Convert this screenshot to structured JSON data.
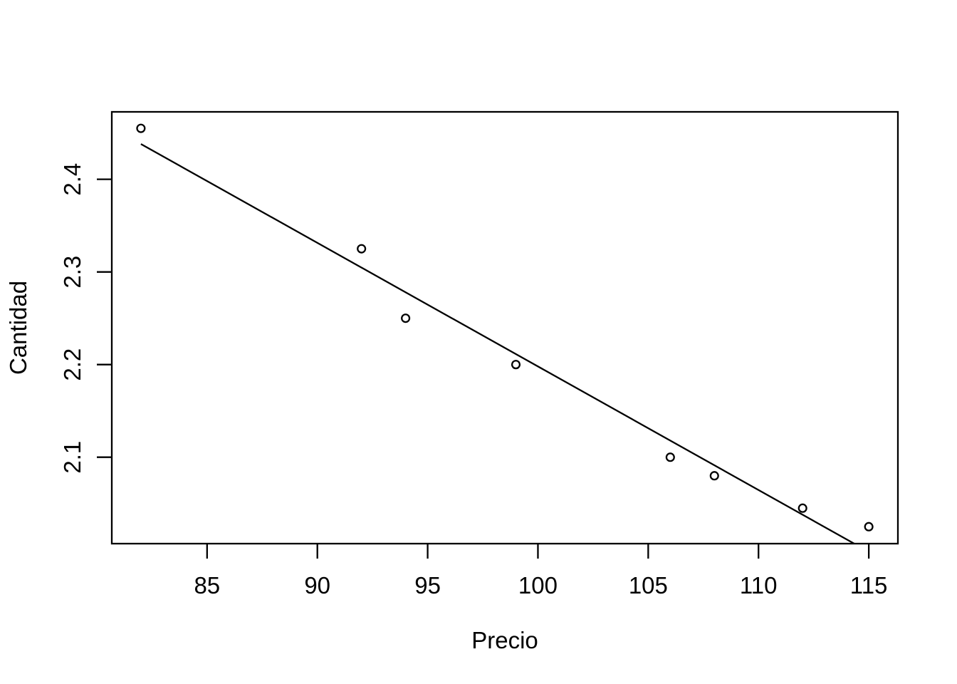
{
  "chart_data": {
    "type": "scatter",
    "title": "",
    "xlabel": "Precio",
    "ylabel": "Cantidad",
    "points": {
      "x": [
        82,
        92,
        94,
        99,
        106,
        108,
        112,
        115
      ],
      "y": [
        2.455,
        2.325,
        2.25,
        2.2,
        2.1,
        2.08,
        2.045,
        2.025
      ]
    },
    "regression_line": {
      "slope": -0.01334,
      "intercept": 3.532,
      "x_start": 82,
      "x_end": 115
    },
    "x_ticks": {
      "values": [
        85,
        90,
        95,
        100,
        105,
        110,
        115
      ],
      "labels": [
        "85",
        "90",
        "95",
        "100",
        "105",
        "110",
        "115"
      ]
    },
    "y_ticks": {
      "values": [
        2.1,
        2.2,
        2.3,
        2.4
      ],
      "labels": [
        "2.1",
        "2.2",
        "2.3",
        "2.4"
      ]
    },
    "xlim": [
      80.68,
      116.32
    ],
    "ylim": [
      2.0067,
      2.4728
    ],
    "grid": false,
    "marker": "open-circle",
    "colors": {
      "foreground": "#000000",
      "background": "#FFFFFF"
    }
  }
}
